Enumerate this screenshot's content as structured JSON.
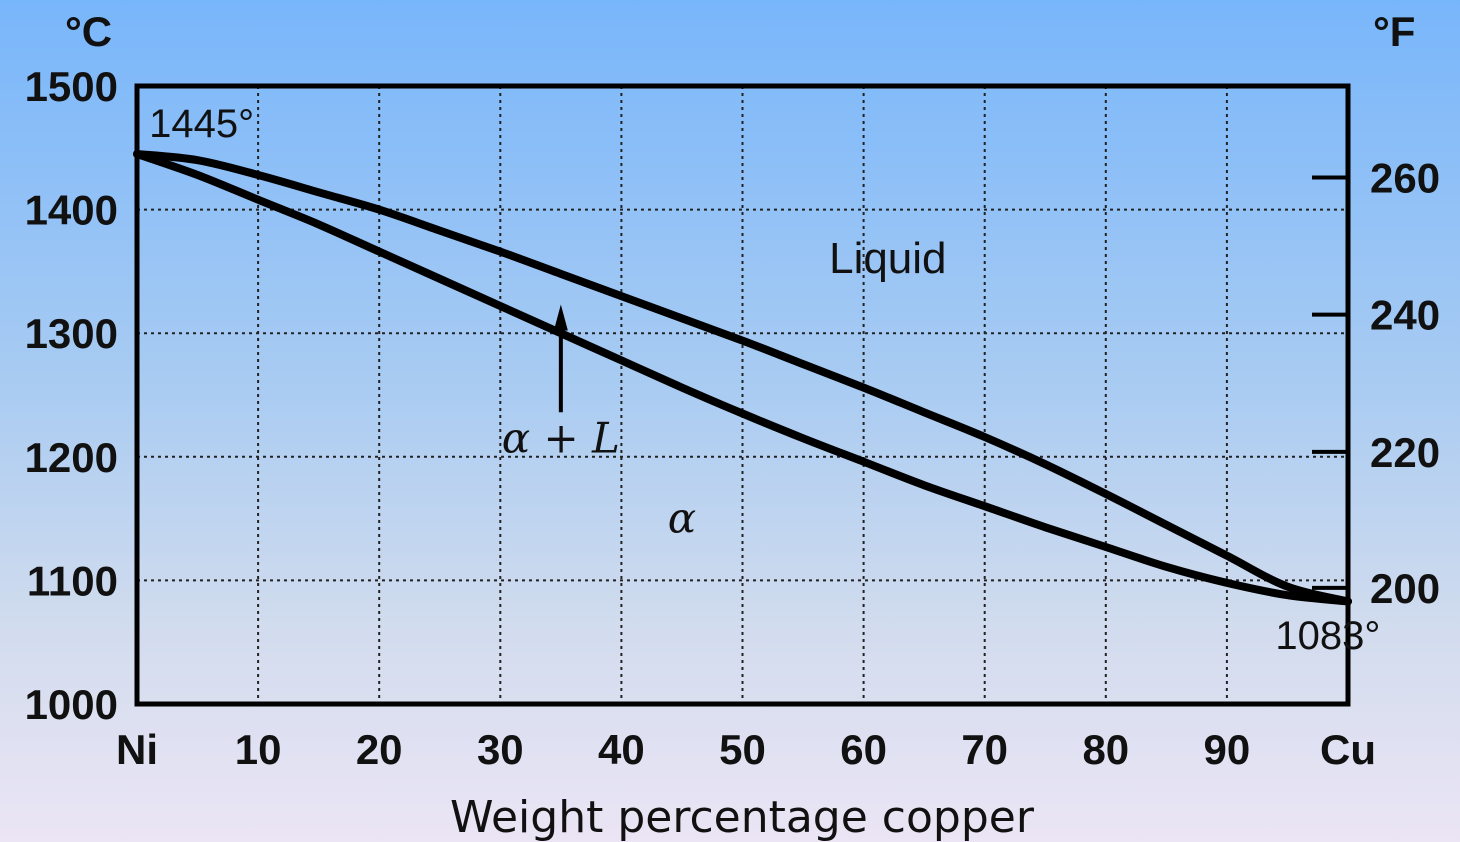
{
  "chart_data": {
    "type": "line",
    "title": "",
    "xlabel": "Weight percentage copper",
    "ylabel_left": "°C",
    "ylabel_right": "°F",
    "x_ticks": [
      {
        "x": 0,
        "label": "Ni"
      },
      {
        "x": 10,
        "label": "10"
      },
      {
        "x": 20,
        "label": "20"
      },
      {
        "x": 30,
        "label": "30"
      },
      {
        "x": 40,
        "label": "40"
      },
      {
        "x": 50,
        "label": "50"
      },
      {
        "x": 60,
        "label": "60"
      },
      {
        "x": 70,
        "label": "70"
      },
      {
        "x": 80,
        "label": "80"
      },
      {
        "x": 90,
        "label": "90"
      },
      {
        "x": 100,
        "label": "Cu"
      }
    ],
    "y_ticks_left": [
      {
        "y": 1000,
        "label": "1000"
      },
      {
        "y": 1100,
        "label": "1100"
      },
      {
        "y": 1200,
        "label": "1200"
      },
      {
        "y": 1300,
        "label": "1300"
      },
      {
        "y": 1400,
        "label": "1400"
      },
      {
        "y": 1500,
        "label": "1500"
      }
    ],
    "y_ticks_right": [
      {
        "y": 1094,
        "label": "200"
      },
      {
        "y": 1204,
        "label": "220"
      },
      {
        "y": 1315,
        "label": "240"
      },
      {
        "y": 1426,
        "label": "260"
      }
    ],
    "xlim": [
      0,
      100
    ],
    "ylim": [
      1000,
      1500
    ],
    "grid": true,
    "series": [
      {
        "x": [
          0,
          5,
          10,
          15,
          20,
          25,
          30,
          35,
          40,
          45,
          50,
          55,
          60,
          65,
          70,
          75,
          80,
          85,
          90,
          95,
          100
        ],
        "y": [
          1445,
          1440,
          1428,
          1414,
          1400,
          1383,
          1366,
          1348,
          1330,
          1312,
          1294,
          1275,
          1256,
          1236,
          1216,
          1194,
          1170,
          1145,
          1120,
          1095,
          1083
        ]
      },
      {
        "x": [
          0,
          5,
          10,
          15,
          20,
          25,
          30,
          35,
          40,
          45,
          50,
          55,
          60,
          65,
          70,
          75,
          80,
          85,
          90,
          95,
          100
        ],
        "y": [
          1445,
          1428,
          1408,
          1388,
          1366,
          1344,
          1322,
          1300,
          1278,
          1256,
          1235,
          1215,
          1196,
          1177,
          1160,
          1143,
          1127,
          1111,
          1098,
          1088,
          1083
        ]
      }
    ],
    "annotations": [
      {
        "text": "1445°",
        "x": 1,
        "y": 1470
      },
      {
        "text": "1083°",
        "x": 94,
        "y": 1056
      },
      {
        "text": "Liquid",
        "x": 62,
        "y": 1360
      },
      {
        "text": "α + L",
        "x": 35,
        "y": 1215,
        "arrow_to": {
          "x": 35,
          "y": 1320
        }
      },
      {
        "text": "α",
        "x": 45,
        "y": 1150
      }
    ]
  }
}
